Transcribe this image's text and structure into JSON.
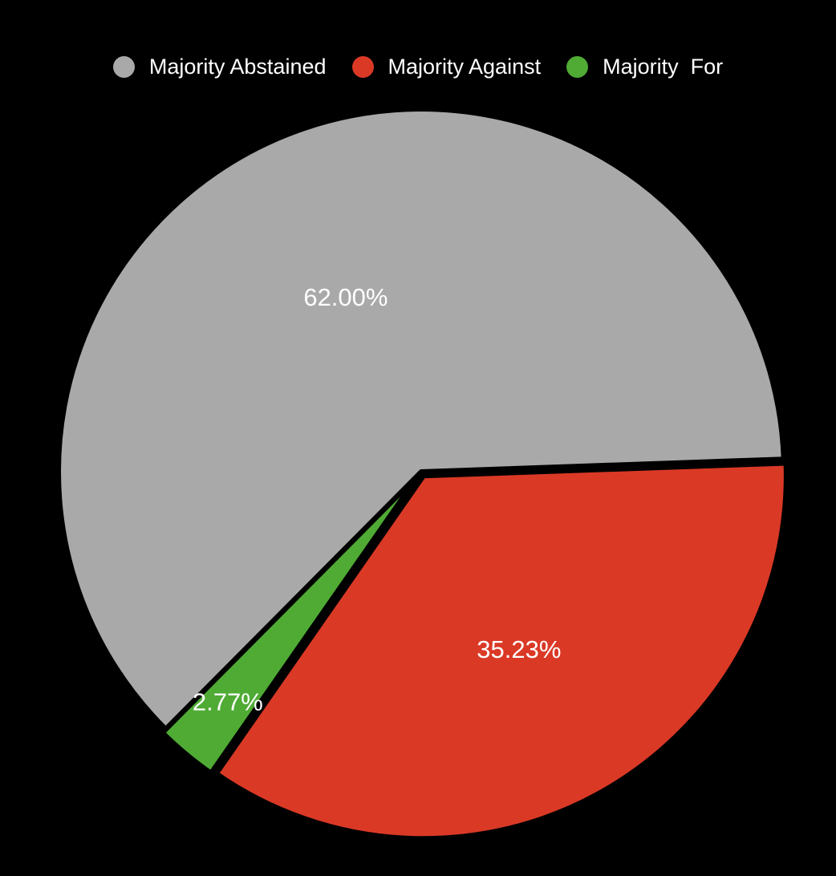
{
  "chart_data": {
    "type": "pie",
    "title": "",
    "legend_position": "top",
    "slices": [
      {
        "name": "Majority Abstained",
        "value": 62.0,
        "label": "62.00%",
        "color": "#a9a9a9"
      },
      {
        "name": "Majority Against",
        "value": 35.23,
        "label": "35.23%",
        "color": "#da3926"
      },
      {
        "name": "Majority  For",
        "value": 2.77,
        "label": "2.77%",
        "color": "#4fab34"
      }
    ]
  },
  "colors": {
    "background": "#000000",
    "slice_border": "#000000",
    "text": "#ffffff"
  }
}
